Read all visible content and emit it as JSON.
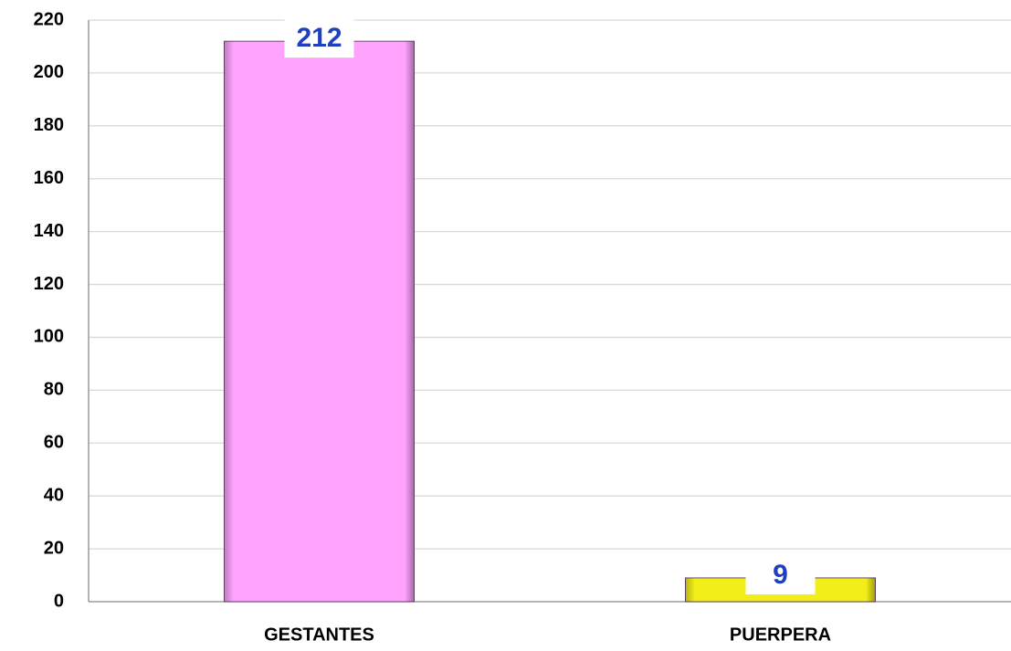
{
  "chart_data": {
    "type": "bar",
    "categories": [
      "GESTANTES",
      "PUERPERA"
    ],
    "values": [
      212,
      9
    ],
    "colors": [
      "#ffa3ff",
      "#f2ee1a"
    ],
    "ylim": [
      0,
      220
    ],
    "yticks": [
      0,
      20,
      40,
      60,
      80,
      100,
      120,
      140,
      160,
      180,
      200,
      220
    ],
    "grid": true
  }
}
